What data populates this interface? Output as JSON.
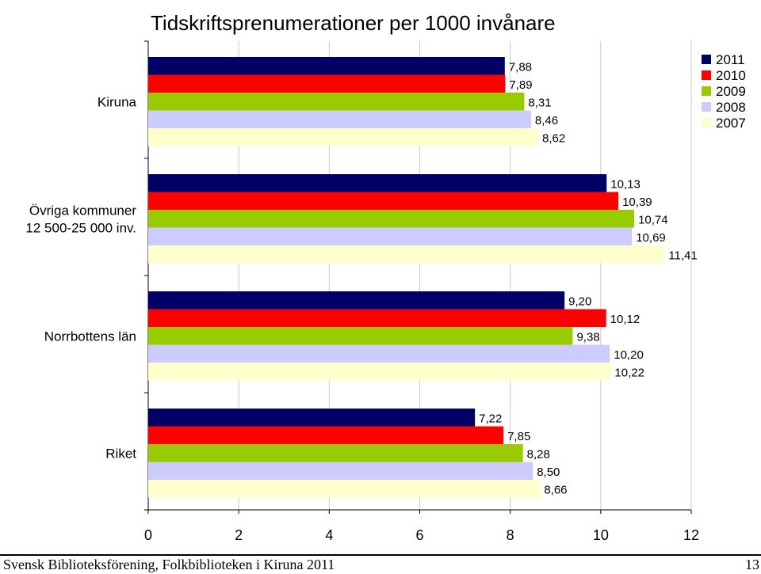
{
  "chart_data": {
    "type": "bar",
    "orientation": "horizontal",
    "title": "Tidskriftsprenumerationer per 1000 invånare",
    "categories": [
      "Kiruna",
      "Övriga kommuner\n12 500-25 000 inv.",
      "Norrbottens län",
      "Riket"
    ],
    "series": [
      {
        "name": "2011",
        "color": "#000066",
        "values": [
          7.88,
          10.13,
          9.2,
          7.22
        ],
        "labels": [
          "7,88",
          "10,13",
          "9,20",
          "7,22"
        ]
      },
      {
        "name": "2010",
        "color": "#ff0000",
        "values": [
          7.89,
          10.39,
          10.12,
          7.85
        ],
        "labels": [
          "7,89",
          "10,39",
          "10,12",
          "7,85"
        ]
      },
      {
        "name": "2009",
        "color": "#99cc00",
        "values": [
          8.31,
          10.74,
          9.38,
          8.28
        ],
        "labels": [
          "8,31",
          "10,74",
          "9,38",
          "8,28"
        ]
      },
      {
        "name": "2008",
        "color": "#ccccff",
        "values": [
          8.46,
          10.69,
          10.2,
          8.5
        ],
        "labels": [
          "8,46",
          "10,69",
          "10,20",
          "8,50"
        ]
      },
      {
        "name": "2007",
        "color": "#ffffcc",
        "values": [
          8.62,
          11.41,
          10.22,
          8.66
        ],
        "labels": [
          "8,62",
          "11,41",
          "10,22",
          "8,66"
        ]
      }
    ],
    "xlim": [
      0,
      12
    ],
    "xticks": [
      "0",
      "2",
      "4",
      "6",
      "8",
      "10",
      "12"
    ],
    "grid": true,
    "legend": "top-right"
  },
  "footer": {
    "text": "Svensk Biblioteksförening, Folkbiblioteken i Kiruna 2011",
    "page": "13"
  }
}
